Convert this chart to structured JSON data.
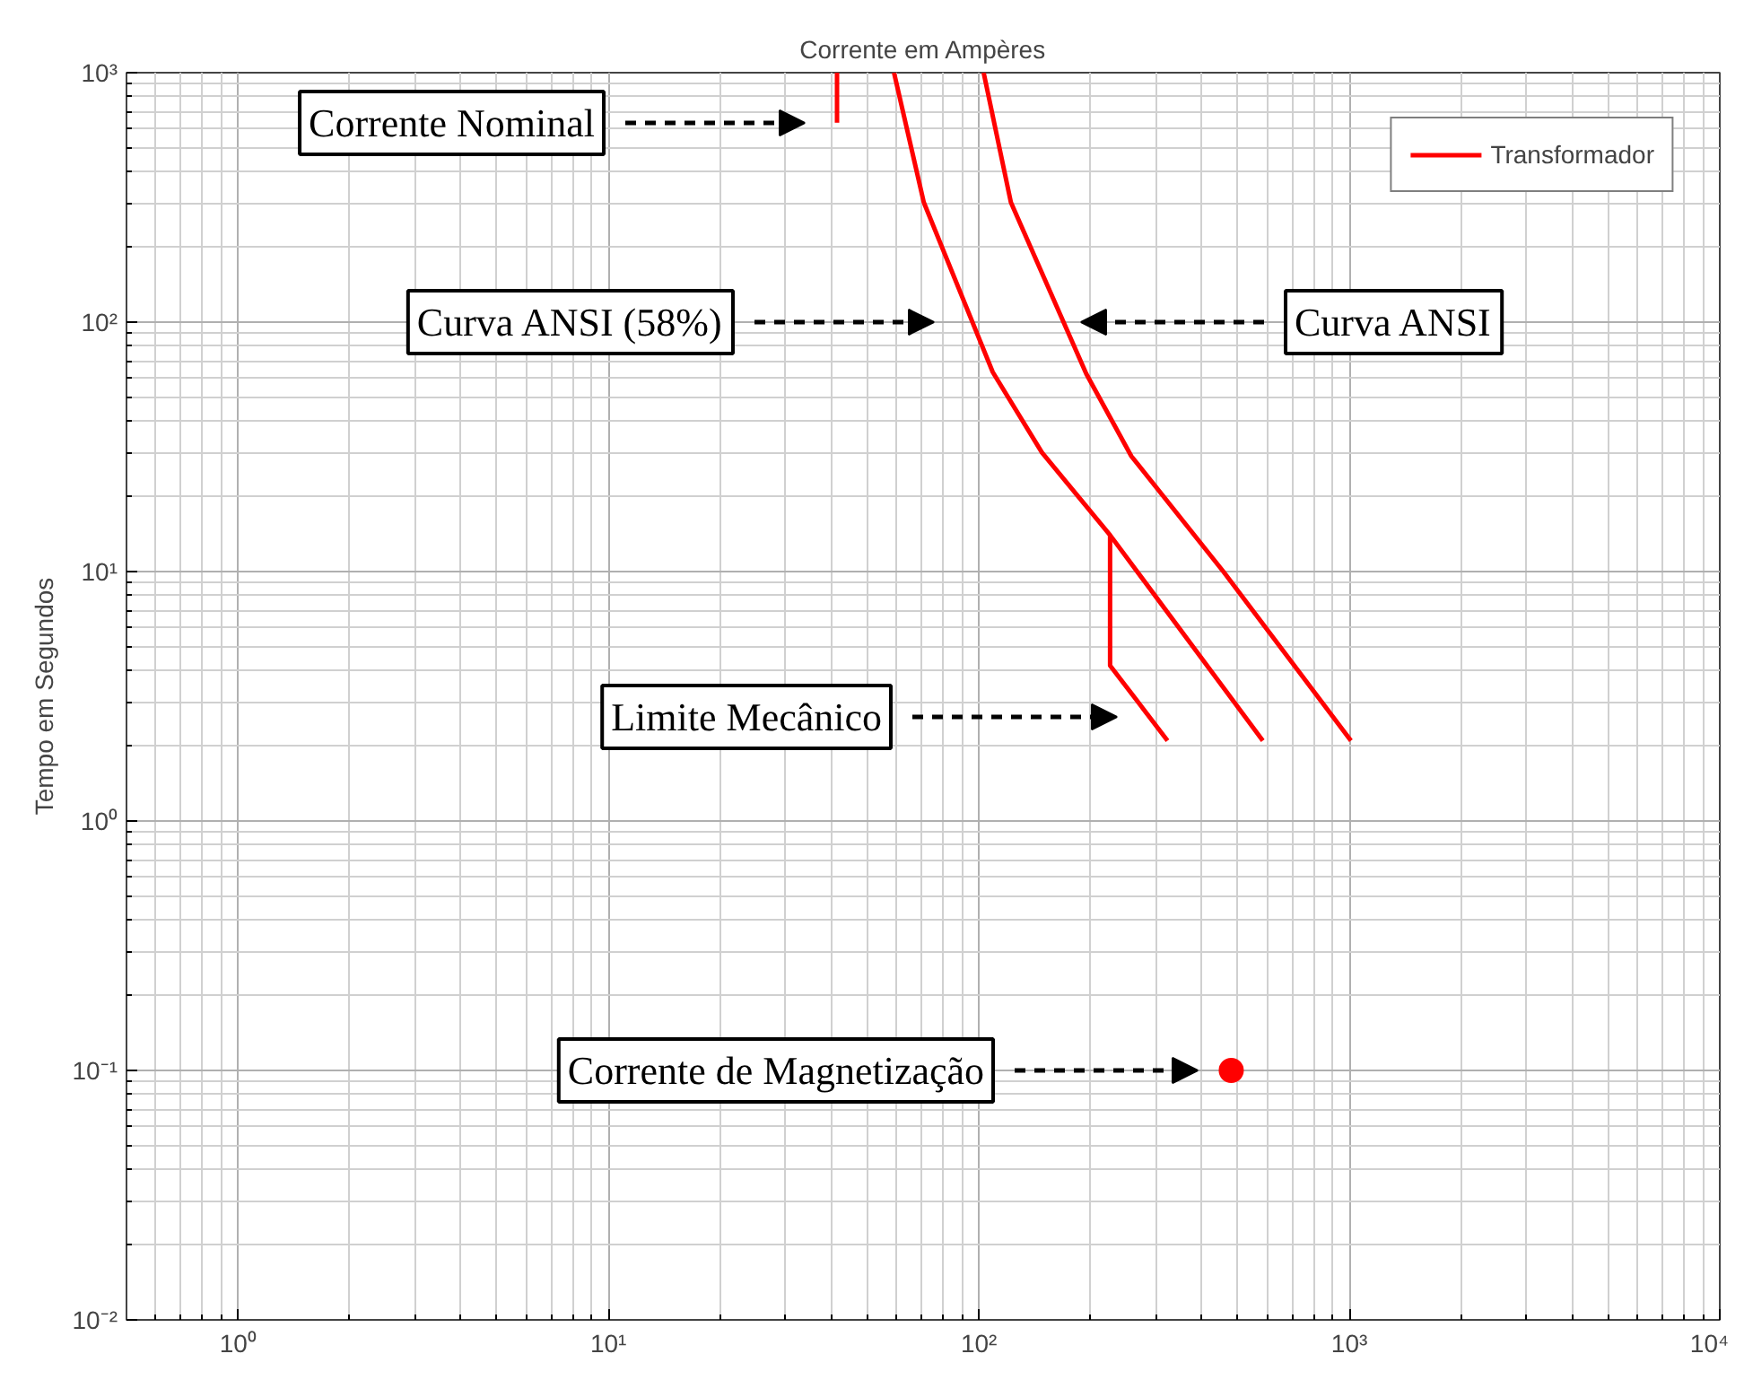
{
  "chart_data": {
    "type": "line",
    "title": "Corrente em Ampères",
    "ylabel": "Tempo em Segundos",
    "log": "xy",
    "xlim": [
      0.5,
      10000
    ],
    "ylim": [
      0.01,
      1000
    ],
    "xticks": [
      {
        "value": 1,
        "label": "10⁰"
      },
      {
        "value": 10,
        "label": "10¹"
      },
      {
        "value": 100,
        "label": "10²"
      },
      {
        "value": 1000,
        "label": "10³"
      },
      {
        "value": 10000,
        "label": "10⁴"
      }
    ],
    "yticks": [
      {
        "value": 0.01,
        "label": "10⁻²"
      },
      {
        "value": 0.1,
        "label": "10⁻¹"
      },
      {
        "value": 1,
        "label": "10⁰"
      },
      {
        "value": 10,
        "label": "10¹"
      },
      {
        "value": 100,
        "label": "10²"
      },
      {
        "value": 1000,
        "label": "10³"
      }
    ],
    "grid": true,
    "legend": "top right",
    "line_style": "solid",
    "series": [
      {
        "name": "Transformador",
        "color": "#ff0000",
        "x": [
          103,
          122,
          195,
          258,
          457,
          1010
        ],
        "values": [
          1000,
          302,
          62,
          29,
          10,
          2.1
        ]
      },
      {
        "color": "#ff0000",
        "x": [
          59,
          71,
          109,
          148,
          226,
          584
        ],
        "values": [
          1000,
          302,
          63,
          30,
          14,
          2.1
        ]
      },
      {
        "color": "#ff0000",
        "x": [
          226,
          226,
          323
        ],
        "values": [
          14,
          4.2,
          2.1
        ]
      },
      {
        "color": "#ff0000",
        "x": [
          41.4,
          41.4
        ],
        "values": [
          1000,
          630
        ]
      },
      {
        "type": "scatter",
        "marker": "circle",
        "color": "#ff0000",
        "x": [
          480
        ],
        "values": [
          0.1
        ]
      }
    ],
    "annotations": [
      "Corrente Nominal",
      "Curva ANSI (58%)",
      "Curva ANSI",
      "Limite Mecânico",
      "Corrente de Magnetização"
    ]
  }
}
